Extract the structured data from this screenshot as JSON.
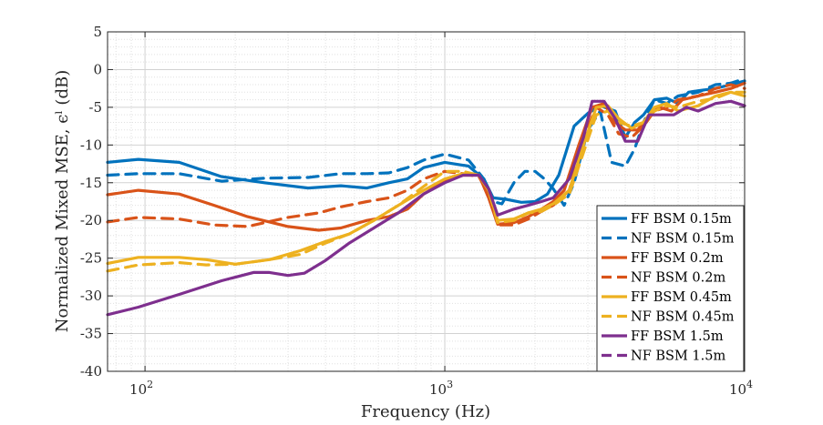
{
  "chart_data": {
    "type": "line",
    "xlabel": "Frequency (Hz)",
    "ylabel": "Normalized Mixed MSE, ϵˡ (dB)",
    "xscale": "log",
    "xlim": [
      75,
      10000
    ],
    "ylim": [
      -40,
      5
    ],
    "yticks": [
      5,
      0,
      -5,
      -10,
      -15,
      -20,
      -25,
      -30,
      -35,
      -40
    ],
    "xticks": [
      {
        "value": 100,
        "base": "10",
        "exp": "2"
      },
      {
        "value": 1000,
        "base": "10",
        "exp": "3"
      },
      {
        "value": 10000,
        "base": "10",
        "exp": "4"
      }
    ],
    "grid": true,
    "legend_position": "bottom-right",
    "series": [
      {
        "name": "FF BSM 0.15m",
        "color": "#0072BD",
        "style": "solid",
        "points": [
          [
            75,
            -12.3
          ],
          [
            95,
            -11.9
          ],
          [
            130,
            -12.3
          ],
          [
            180,
            -14.2
          ],
          [
            250,
            -15.0
          ],
          [
            350,
            -15.7
          ],
          [
            450,
            -15.4
          ],
          [
            550,
            -15.7
          ],
          [
            650,
            -15.0
          ],
          [
            750,
            -14.5
          ],
          [
            850,
            -13.0
          ],
          [
            1000,
            -12.3
          ],
          [
            1200,
            -12.8
          ],
          [
            1350,
            -14.5
          ],
          [
            1450,
            -17.0
          ],
          [
            1600,
            -17.2
          ],
          [
            1800,
            -17.6
          ],
          [
            2000,
            -17.5
          ],
          [
            2200,
            -16.5
          ],
          [
            2400,
            -14.0
          ],
          [
            2700,
            -7.5
          ],
          [
            3000,
            -5.8
          ],
          [
            3300,
            -4.8
          ],
          [
            3700,
            -5.5
          ],
          [
            4000,
            -9.0
          ],
          [
            4300,
            -7.0
          ],
          [
            4600,
            -6.0
          ],
          [
            5000,
            -4.0
          ],
          [
            5500,
            -3.8
          ],
          [
            6000,
            -4.5
          ],
          [
            6500,
            -3.0
          ],
          [
            7000,
            -2.8
          ],
          [
            8000,
            -2.5
          ],
          [
            9000,
            -2.0
          ],
          [
            10000,
            -1.5
          ]
        ]
      },
      {
        "name": "NF BSM 0.15m",
        "color": "#0072BD",
        "style": "dashed",
        "points": [
          [
            75,
            -14.0
          ],
          [
            95,
            -13.8
          ],
          [
            130,
            -13.8
          ],
          [
            180,
            -14.8
          ],
          [
            250,
            -14.4
          ],
          [
            350,
            -14.3
          ],
          [
            450,
            -13.8
          ],
          [
            550,
            -13.8
          ],
          [
            650,
            -13.7
          ],
          [
            750,
            -13.0
          ],
          [
            850,
            -12.0
          ],
          [
            1000,
            -11.2
          ],
          [
            1200,
            -12.0
          ],
          [
            1350,
            -14.5
          ],
          [
            1450,
            -17.5
          ],
          [
            1550,
            -17.8
          ],
          [
            1700,
            -15.0
          ],
          [
            1850,
            -13.5
          ],
          [
            2000,
            -13.5
          ],
          [
            2150,
            -14.5
          ],
          [
            2300,
            -15.8
          ],
          [
            2500,
            -18.0
          ],
          [
            2700,
            -15.0
          ],
          [
            3000,
            -8.0
          ],
          [
            3300,
            -5.5
          ],
          [
            3600,
            -12.3
          ],
          [
            4000,
            -12.8
          ],
          [
            4300,
            -10.5
          ],
          [
            4600,
            -7.0
          ],
          [
            5000,
            -4.0
          ],
          [
            5500,
            -4.5
          ],
          [
            6000,
            -3.5
          ],
          [
            7000,
            -3.0
          ],
          [
            8000,
            -2.0
          ],
          [
            9000,
            -1.8
          ],
          [
            10000,
            -1.2
          ]
        ]
      },
      {
        "name": "FF BSM 0.2m",
        "color": "#D95319",
        "style": "solid",
        "points": [
          [
            75,
            -16.6
          ],
          [
            95,
            -16.0
          ],
          [
            130,
            -16.5
          ],
          [
            170,
            -18.0
          ],
          [
            220,
            -19.5
          ],
          [
            300,
            -20.8
          ],
          [
            380,
            -21.3
          ],
          [
            450,
            -21.0
          ],
          [
            550,
            -20.0
          ],
          [
            650,
            -19.5
          ],
          [
            750,
            -18.5
          ],
          [
            850,
            -16.5
          ],
          [
            1000,
            -14.8
          ],
          [
            1150,
            -14.0
          ],
          [
            1300,
            -14.0
          ],
          [
            1400,
            -17.0
          ],
          [
            1500,
            -20.5
          ],
          [
            1700,
            -20.3
          ],
          [
            1900,
            -19.5
          ],
          [
            2100,
            -18.5
          ],
          [
            2300,
            -17.5
          ],
          [
            2500,
            -16.0
          ],
          [
            2800,
            -10.0
          ],
          [
            3100,
            -5.0
          ],
          [
            3400,
            -4.5
          ],
          [
            3700,
            -7.0
          ],
          [
            4000,
            -8.0
          ],
          [
            4400,
            -8.0
          ],
          [
            4800,
            -6.0
          ],
          [
            5200,
            -5.0
          ],
          [
            5700,
            -5.5
          ],
          [
            6200,
            -4.0
          ],
          [
            7000,
            -3.5
          ],
          [
            8000,
            -3.0
          ],
          [
            9000,
            -2.5
          ],
          [
            10000,
            -1.8
          ]
        ]
      },
      {
        "name": "NF BSM 0.2m",
        "color": "#D95319",
        "style": "dashed",
        "points": [
          [
            75,
            -20.2
          ],
          [
            95,
            -19.6
          ],
          [
            130,
            -19.8
          ],
          [
            170,
            -20.6
          ],
          [
            220,
            -20.8
          ],
          [
            300,
            -19.6
          ],
          [
            380,
            -19.0
          ],
          [
            450,
            -18.2
          ],
          [
            550,
            -17.5
          ],
          [
            650,
            -17.0
          ],
          [
            750,
            -16.0
          ],
          [
            850,
            -14.5
          ],
          [
            1000,
            -13.5
          ],
          [
            1150,
            -13.8
          ],
          [
            1300,
            -14.2
          ],
          [
            1400,
            -16.5
          ],
          [
            1500,
            -20.6
          ],
          [
            1700,
            -20.6
          ],
          [
            1900,
            -19.8
          ],
          [
            2100,
            -18.8
          ],
          [
            2300,
            -18.0
          ],
          [
            2600,
            -16.0
          ],
          [
            2900,
            -9.0
          ],
          [
            3200,
            -5.0
          ],
          [
            3500,
            -6.0
          ],
          [
            3800,
            -8.5
          ],
          [
            4200,
            -9.0
          ],
          [
            4600,
            -7.5
          ],
          [
            5000,
            -5.5
          ],
          [
            5500,
            -5.0
          ],
          [
            6000,
            -4.0
          ],
          [
            7000,
            -3.5
          ],
          [
            8000,
            -2.5
          ],
          [
            9000,
            -2.0
          ],
          [
            10000,
            -2.5
          ]
        ]
      },
      {
        "name": "FF BSM 0.45m",
        "color": "#EDB120",
        "style": "solid",
        "points": [
          [
            75,
            -25.7
          ],
          [
            95,
            -24.9
          ],
          [
            130,
            -24.9
          ],
          [
            160,
            -25.2
          ],
          [
            200,
            -25.8
          ],
          [
            260,
            -25.2
          ],
          [
            330,
            -24.0
          ],
          [
            400,
            -22.8
          ],
          [
            480,
            -21.8
          ],
          [
            580,
            -20.0
          ],
          [
            700,
            -18.0
          ],
          [
            850,
            -16.0
          ],
          [
            1000,
            -14.5
          ],
          [
            1150,
            -13.8
          ],
          [
            1300,
            -14.0
          ],
          [
            1400,
            -16.0
          ],
          [
            1500,
            -20.0
          ],
          [
            1700,
            -19.8
          ],
          [
            1900,
            -19.0
          ],
          [
            2100,
            -18.5
          ],
          [
            2300,
            -17.8
          ],
          [
            2600,
            -16.0
          ],
          [
            2900,
            -10.0
          ],
          [
            3200,
            -5.0
          ],
          [
            3500,
            -4.8
          ],
          [
            3800,
            -6.5
          ],
          [
            4200,
            -7.8
          ],
          [
            4600,
            -7.0
          ],
          [
            5000,
            -5.0
          ],
          [
            5500,
            -4.5
          ],
          [
            6000,
            -5.5
          ],
          [
            7000,
            -4.8
          ],
          [
            8000,
            -3.5
          ],
          [
            9000,
            -3.0
          ],
          [
            10000,
            -3.5
          ]
        ]
      },
      {
        "name": "NF BSM 0.45m",
        "color": "#EDB120",
        "style": "dashed",
        "points": [
          [
            75,
            -26.7
          ],
          [
            95,
            -25.9
          ],
          [
            130,
            -25.6
          ],
          [
            160,
            -25.9
          ],
          [
            200,
            -25.8
          ],
          [
            260,
            -25.2
          ],
          [
            330,
            -24.5
          ],
          [
            400,
            -23.0
          ],
          [
            480,
            -21.8
          ],
          [
            580,
            -20.0
          ],
          [
            700,
            -18.0
          ],
          [
            850,
            -15.5
          ],
          [
            1000,
            -13.5
          ],
          [
            1150,
            -13.5
          ],
          [
            1300,
            -14.0
          ],
          [
            1400,
            -16.0
          ],
          [
            1500,
            -20.3
          ],
          [
            1700,
            -20.0
          ],
          [
            1900,
            -19.0
          ],
          [
            2100,
            -18.8
          ],
          [
            2300,
            -18.0
          ],
          [
            2600,
            -16.5
          ],
          [
            2900,
            -11.0
          ],
          [
            3200,
            -6.0
          ],
          [
            3500,
            -5.5
          ],
          [
            3800,
            -7.0
          ],
          [
            4200,
            -7.5
          ],
          [
            4600,
            -7.0
          ],
          [
            5000,
            -5.5
          ],
          [
            5500,
            -4.8
          ],
          [
            6000,
            -5.0
          ],
          [
            7000,
            -4.2
          ],
          [
            8000,
            -3.8
          ],
          [
            9000,
            -3.0
          ],
          [
            10000,
            -3.0
          ]
        ]
      },
      {
        "name": "FF BSM 1.5m",
        "color": "#7E2F8E",
        "style": "solid",
        "points": [
          [
            75,
            -32.5
          ],
          [
            95,
            -31.5
          ],
          [
            130,
            -29.8
          ],
          [
            180,
            -28.0
          ],
          [
            230,
            -26.9
          ],
          [
            260,
            -26.9
          ],
          [
            300,
            -27.3
          ],
          [
            340,
            -27.0
          ],
          [
            400,
            -25.3
          ],
          [
            480,
            -23.0
          ],
          [
            580,
            -21.0
          ],
          [
            700,
            -19.0
          ],
          [
            850,
            -16.5
          ],
          [
            1000,
            -15.0
          ],
          [
            1150,
            -14.0
          ],
          [
            1300,
            -14.0
          ],
          [
            1400,
            -15.8
          ],
          [
            1500,
            -19.3
          ],
          [
            1700,
            -18.5
          ],
          [
            1900,
            -18.0
          ],
          [
            2100,
            -17.5
          ],
          [
            2300,
            -17.0
          ],
          [
            2600,
            -14.5
          ],
          [
            2900,
            -9.0
          ],
          [
            3100,
            -4.2
          ],
          [
            3400,
            -4.2
          ],
          [
            3700,
            -6.5
          ],
          [
            4000,
            -9.5
          ],
          [
            4400,
            -9.5
          ],
          [
            4800,
            -6.0
          ],
          [
            5200,
            -6.0
          ],
          [
            5800,
            -6.0
          ],
          [
            6400,
            -5.0
          ],
          [
            7000,
            -5.5
          ],
          [
            8000,
            -4.5
          ],
          [
            9000,
            -4.2
          ],
          [
            10000,
            -4.8
          ]
        ]
      },
      {
        "name": "NF BSM 1.5m",
        "color": "#7E2F8E",
        "style": "dashed",
        "points": []
      }
    ]
  }
}
